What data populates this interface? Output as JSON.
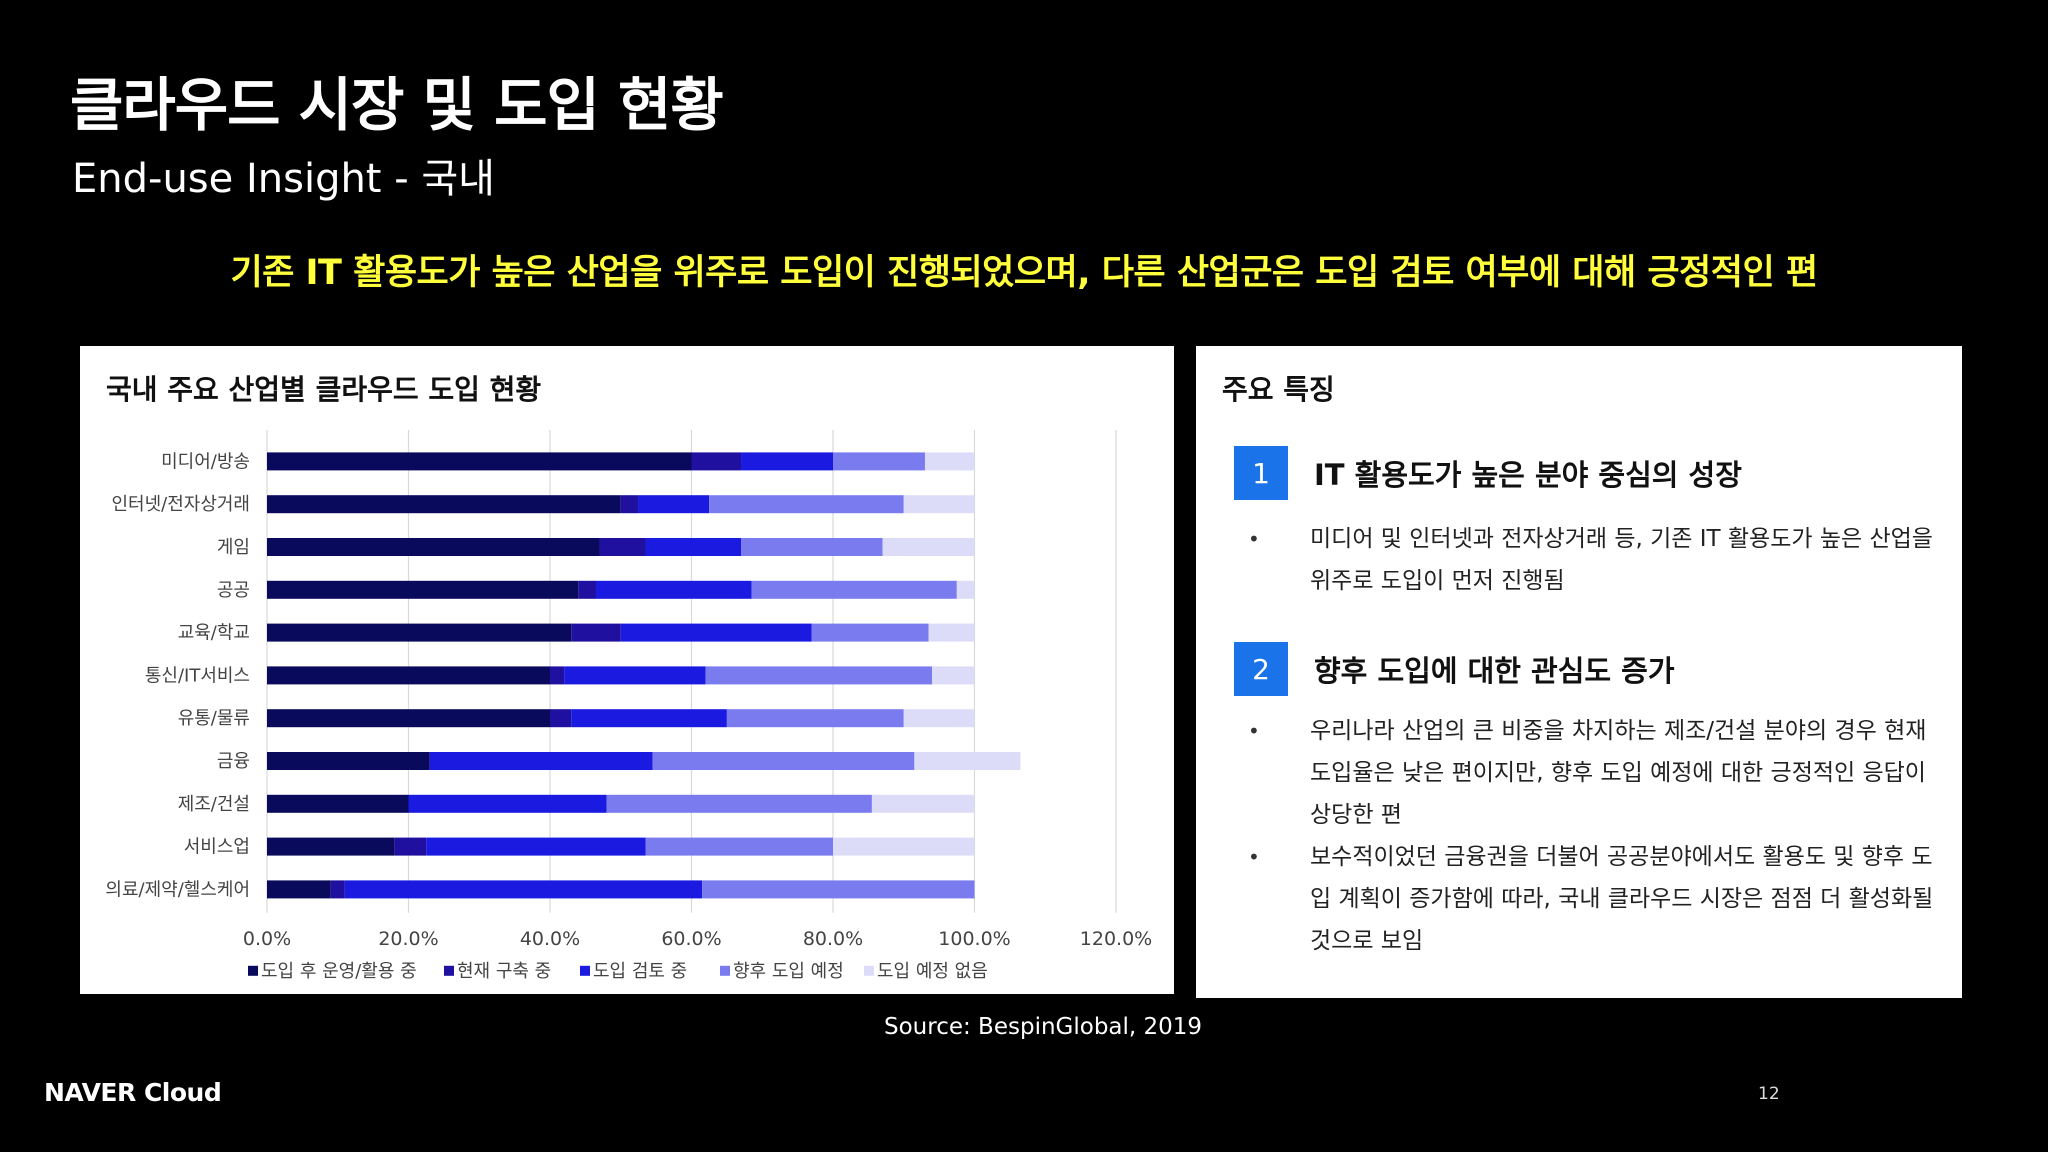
{
  "slide": {
    "title": "클라우드 시장 및 도입 현황",
    "subtitle": "End-use Insight - 국내",
    "headline": "기존 IT 활용도가 높은 산업을 위주로 도입이 진행되었으며, 다른 산업군은 도입 검토 여부에 대해 긍정적인 편",
    "source": "Source: BespinGlobal, 2019",
    "logo": "NAVER Cloud",
    "page_number": "12"
  },
  "chart_panel": {
    "title": "국내 주요 산업별 클라우드 도입 현황"
  },
  "features": {
    "title": "주요 특징",
    "items": [
      {
        "number": "1",
        "title": "IT 활용도가 높은 분야 중심의 성장",
        "bullets": [
          "미디어 및 인터넷과 전자상거래 등, 기존 IT 활용도가 높은 산업을 위주로 도입이 먼저 진행됨"
        ]
      },
      {
        "number": "2",
        "title": "향후 도입에 대한 관심도 증가",
        "bullets": [
          "우리나라 산업의 큰 비중을 차지하는 제조/건설 분야의 경우 현재 도입율은 낮은 편이지만, 향후 도입 예정에 대한 긍정적인 응답이 상당한 편",
          "보수적이었던 금융권을 더불어 공공분야에서도 활용도 및 향후 도입 계획이 증가함에 따라, 국내 클라우드 시장은 점점 더 활성화될 것으로 보임"
        ]
      }
    ]
  },
  "chart_data": {
    "type": "bar",
    "orientation": "horizontal",
    "stacked": true,
    "categories": [
      "미디어/방송",
      "인터넷/전자상거래",
      "게임",
      "공공",
      "교육/학교",
      "통신/IT서비스",
      "유통/물류",
      "금융",
      "제조/건설",
      "서비스업",
      "의료/제약/헬스케어"
    ],
    "series": [
      {
        "name": "도입 후 운영/활용 중",
        "color": "#0a0a5c",
        "values": [
          60,
          50,
          47,
          44,
          43,
          40,
          40,
          23,
          20,
          18,
          9
        ]
      },
      {
        "name": "현재 구축 중",
        "color": "#2010a0",
        "values": [
          7,
          2.5,
          6.5,
          2.5,
          7,
          2,
          3,
          0,
          0,
          4.5,
          2
        ]
      },
      {
        "name": "도입 검토 중",
        "color": "#1a1ae0",
        "values": [
          13,
          10,
          13.5,
          22,
          27,
          20,
          22,
          31.5,
          28,
          31,
          50.5
        ]
      },
      {
        "name": "향후 도입 예정",
        "color": "#7b7bf0",
        "values": [
          13,
          27.5,
          20,
          29,
          16.5,
          32,
          25,
          37,
          37.5,
          26.5,
          38.5
        ]
      },
      {
        "name": "도입 예정 없음",
        "color": "#dcdcf8",
        "values": [
          7,
          10,
          13,
          2.5,
          6.5,
          6,
          10,
          15,
          14.5,
          20,
          0
        ]
      }
    ],
    "xlim": [
      0,
      120
    ],
    "xticks": [
      "0.0%",
      "20.0%",
      "40.0%",
      "60.0%",
      "80.0%",
      "100.0%",
      "120.0%"
    ],
    "grid": true,
    "legend": "bottom"
  }
}
